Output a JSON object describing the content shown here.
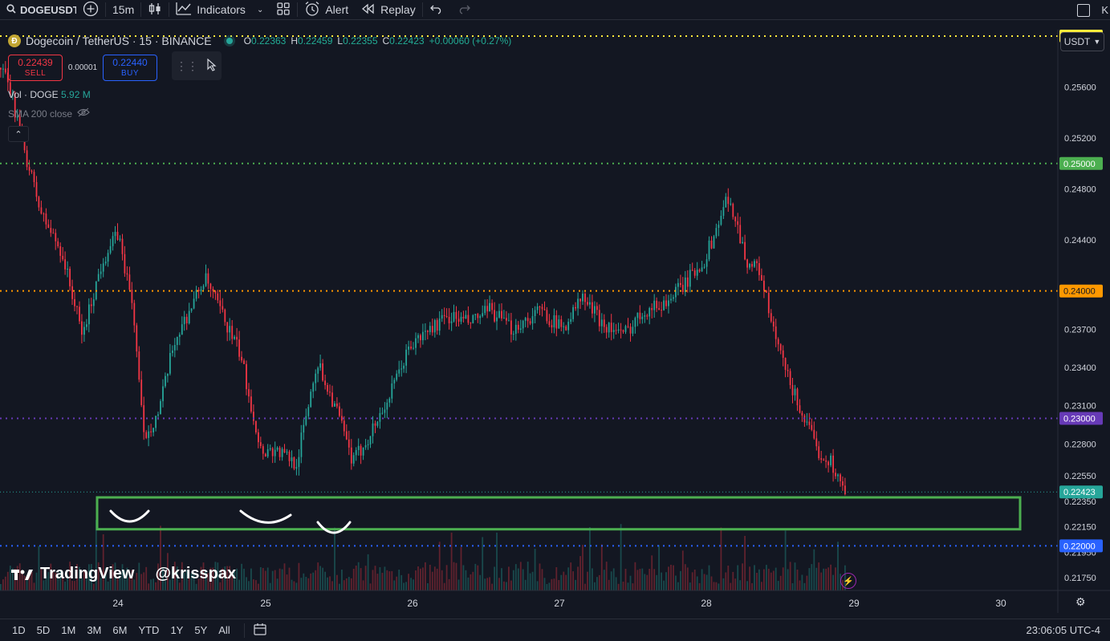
{
  "toolbar": {
    "symbol": "DOGEUSDT",
    "interval": "15m",
    "indicators": "Indicators",
    "alert": "Alert",
    "replay": "Replay",
    "right_text": "K"
  },
  "legend": {
    "title": "Dogecoin / TetherUS · 15 · BINANCE",
    "open_label": "O",
    "open": "0.22363",
    "high_label": "H",
    "high": "0.22459",
    "low_label": "L",
    "low": "0.22355",
    "close_label": "C",
    "close": "0.22423",
    "change": "+0.00060 (+0.27%)"
  },
  "trade": {
    "sell_price": "0.22439",
    "sell_label": "SELL",
    "spread": "0.00001",
    "buy_price": "0.22440",
    "buy_label": "BUY"
  },
  "indicators": {
    "vol_label": "Vol · DOGE",
    "vol_value": "5.92 M",
    "sma_label": "SMA 200 close"
  },
  "currency": "USDT",
  "watermark": {
    "brand": "TradingView",
    "author": "@krisspax"
  },
  "bottom": {
    "ranges": [
      "1D",
      "5D",
      "1M",
      "3M",
      "6M",
      "YTD",
      "1Y",
      "5Y",
      "All"
    ],
    "clock": "23:06:05 UTC-4"
  },
  "colors": {
    "up": "#26a69a",
    "down": "#f23645",
    "zone": "#4caf50"
  },
  "chart_data": {
    "type": "candlestick",
    "x_tick_labels": [
      "24",
      "25",
      "26",
      "27",
      "28",
      "29",
      "30"
    ],
    "y_tick_labels": [
      "0.25600",
      "0.25200",
      "0.24800",
      "0.24400",
      "0.23700",
      "0.23400",
      "0.23100",
      "0.22800",
      "0.22550",
      "0.22350",
      "0.22150",
      "0.21950",
      "0.21750"
    ],
    "y_range": [
      0.2165,
      0.2605
    ],
    "last_price": "0.22423",
    "horizontal_levels": [
      {
        "value": 0.26,
        "label": "0.26000",
        "color": "#ffeb3b"
      },
      {
        "value": 0.25,
        "label": "0.25000",
        "color": "#4caf50"
      },
      {
        "value": 0.24,
        "label": "0.24000",
        "color": "#ff9800"
      },
      {
        "value": 0.23,
        "label": "0.23000",
        "color": "#673ab7"
      },
      {
        "value": 0.22,
        "label": "0.22000",
        "color": "#2962ff"
      }
    ],
    "support_zone": [
      0.2213,
      0.2238
    ],
    "price_path": [
      [
        0.0,
        0.2575
      ],
      [
        0.01,
        0.2555
      ],
      [
        0.025,
        0.2505
      ],
      [
        0.04,
        0.246
      ],
      [
        0.06,
        0.243
      ],
      [
        0.08,
        0.2365
      ],
      [
        0.1,
        0.2425
      ],
      [
        0.115,
        0.2445
      ],
      [
        0.13,
        0.2385
      ],
      [
        0.14,
        0.2285
      ],
      [
        0.155,
        0.2305
      ],
      [
        0.17,
        0.236
      ],
      [
        0.185,
        0.2385
      ],
      [
        0.2,
        0.241
      ],
      [
        0.215,
        0.2385
      ],
      [
        0.235,
        0.235
      ],
      [
        0.255,
        0.2275
      ],
      [
        0.27,
        0.2275
      ],
      [
        0.29,
        0.2265
      ],
      [
        0.3,
        0.2305
      ],
      [
        0.31,
        0.2345
      ],
      [
        0.33,
        0.2305
      ],
      [
        0.345,
        0.2265
      ],
      [
        0.36,
        0.2285
      ],
      [
        0.38,
        0.2315
      ],
      [
        0.4,
        0.2355
      ],
      [
        0.42,
        0.237
      ],
      [
        0.44,
        0.238
      ],
      [
        0.46,
        0.2375
      ],
      [
        0.48,
        0.2385
      ],
      [
        0.5,
        0.237
      ],
      [
        0.53,
        0.2385
      ],
      [
        0.55,
        0.237
      ],
      [
        0.57,
        0.2395
      ],
      [
        0.59,
        0.2375
      ],
      [
        0.61,
        0.2365
      ],
      [
        0.63,
        0.2385
      ],
      [
        0.65,
        0.239
      ],
      [
        0.67,
        0.2405
      ],
      [
        0.69,
        0.2425
      ],
      [
        0.7,
        0.2445
      ],
      [
        0.71,
        0.247
      ],
      [
        0.72,
        0.246
      ],
      [
        0.73,
        0.2425
      ],
      [
        0.745,
        0.2415
      ],
      [
        0.755,
        0.2375
      ],
      [
        0.77,
        0.2335
      ],
      [
        0.785,
        0.2305
      ],
      [
        0.8,
        0.2275
      ],
      [
        0.815,
        0.2265
      ],
      [
        0.825,
        0.2245
      ],
      [
        0.83,
        0.2238
      ]
    ]
  }
}
